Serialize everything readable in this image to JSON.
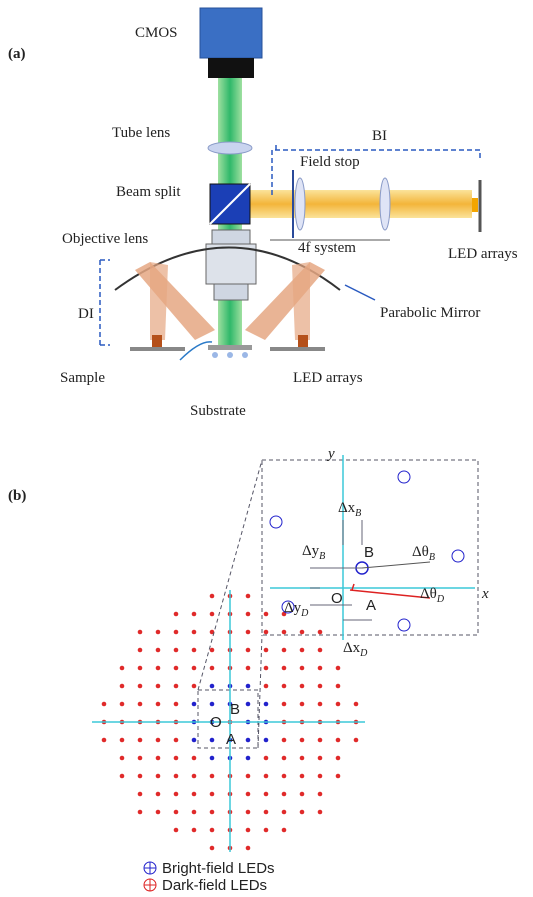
{
  "panel_a": {
    "label": "(a)",
    "labels": {
      "cmos": "CMOS",
      "tube_lens": "Tube lens",
      "bi": "BI",
      "field_stop": "Field stop",
      "beam_split": "Beam split",
      "objective": "Objective lens",
      "four_f": "4f system",
      "led_right": "LED arrays",
      "di": "DI",
      "parabolic": "Parabolic Mirror",
      "sample": "Sample",
      "led_bottom": "LED arrays",
      "substrate": "Substrate"
    }
  },
  "panel_b": {
    "label": "(b)",
    "zoom": {
      "y_axis": "y",
      "x_axis": "x",
      "dxB": {
        "main": "Δx",
        "sub": "B"
      },
      "dyB": {
        "main": "Δy",
        "sub": "B"
      },
      "B": "B",
      "dthB": {
        "main": "Δθ",
        "sub": "B"
      },
      "dyD": {
        "main": "Δy",
        "sub": "D"
      },
      "O": "O",
      "A": "A",
      "dthD": {
        "main": "Δθ",
        "sub": "D"
      },
      "dxD": {
        "main": "Δx",
        "sub": "D"
      }
    },
    "array": {
      "B": "B",
      "O": "O",
      "A": "A"
    },
    "legend": [
      "Bright-field LEDs",
      "Dark-field LEDs"
    ]
  }
}
